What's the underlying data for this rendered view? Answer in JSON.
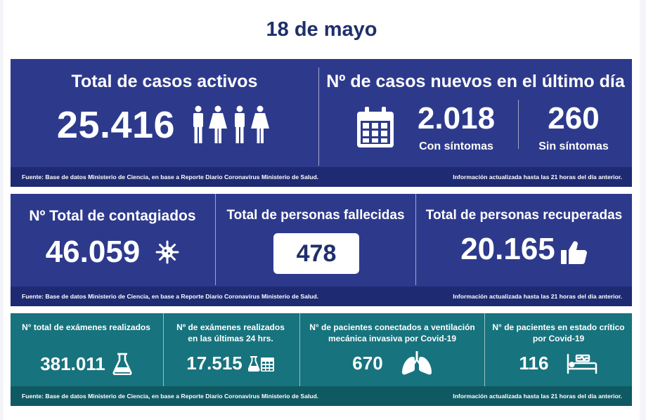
{
  "date": "18 de mayo",
  "panel1": {
    "active_title": "Total de casos activos",
    "active_value": "25.416",
    "new_title": "Nº de casos nuevos en el último día",
    "symptomatic_value": "2.018",
    "symptomatic_label": "Con síntomas",
    "asymptomatic_value": "260",
    "asymptomatic_label": "Sin síntomas",
    "source": "Fuente: Base de datos Ministerio de Ciencia, en base a Reporte Diario Coronavirus Ministerio de Salud.",
    "updated": "Información actualizada hasta las 21 horas  del día anterior."
  },
  "panel2": {
    "infected_title": "Nº Total de contagiados",
    "infected_value": "46.059",
    "deaths_title": "Total de personas fallecidas",
    "deaths_value": "478",
    "recovered_title": "Total de personas recuperadas",
    "recovered_value": "20.165",
    "source": "Fuente: Base de datos Ministerio de Ciencia, en base a Reporte Diario Coronavirus Ministerio de Salud.",
    "updated": "Información actualizada hasta las 21 horas  del día anterior."
  },
  "panel3": {
    "exams_title": "N° total de exámenes realizados",
    "exams_value": "381.011",
    "exams24_title_line1": "Nº de exámenes realizados",
    "exams24_title_line2": "en las últimas 24 hrs.",
    "exams24_value": "17.515",
    "ventilator_title_line1": "N° de pacientes conectados a ventilación",
    "ventilator_title_line2": "mecánica invasiva por Covid-19",
    "ventilator_value": "670",
    "critical_title_line1": "N° de pacientes en estado crítico",
    "critical_title_line2": "por Covid-19",
    "critical_value": "116",
    "source": "Fuente: Base de datos Ministerio de Ciencia, en base a Reporte Diario Coronavirus Ministerio de Salud.",
    "updated": "Información actualizada hasta las 21 horas  del día anterior."
  },
  "icons": [
    "people-icon",
    "calendar-icon",
    "virus-icon",
    "thumbs-up-icon",
    "flask-icon",
    "flask-calendar-icon",
    "lungs-icon",
    "hospital-bed-icon"
  ],
  "colors": {
    "navy": "#2d3a8c",
    "navy_footer": "#1e2a72",
    "teal": "#17737d",
    "teal_footer": "#0f5963",
    "title": "#1e2f6b"
  }
}
